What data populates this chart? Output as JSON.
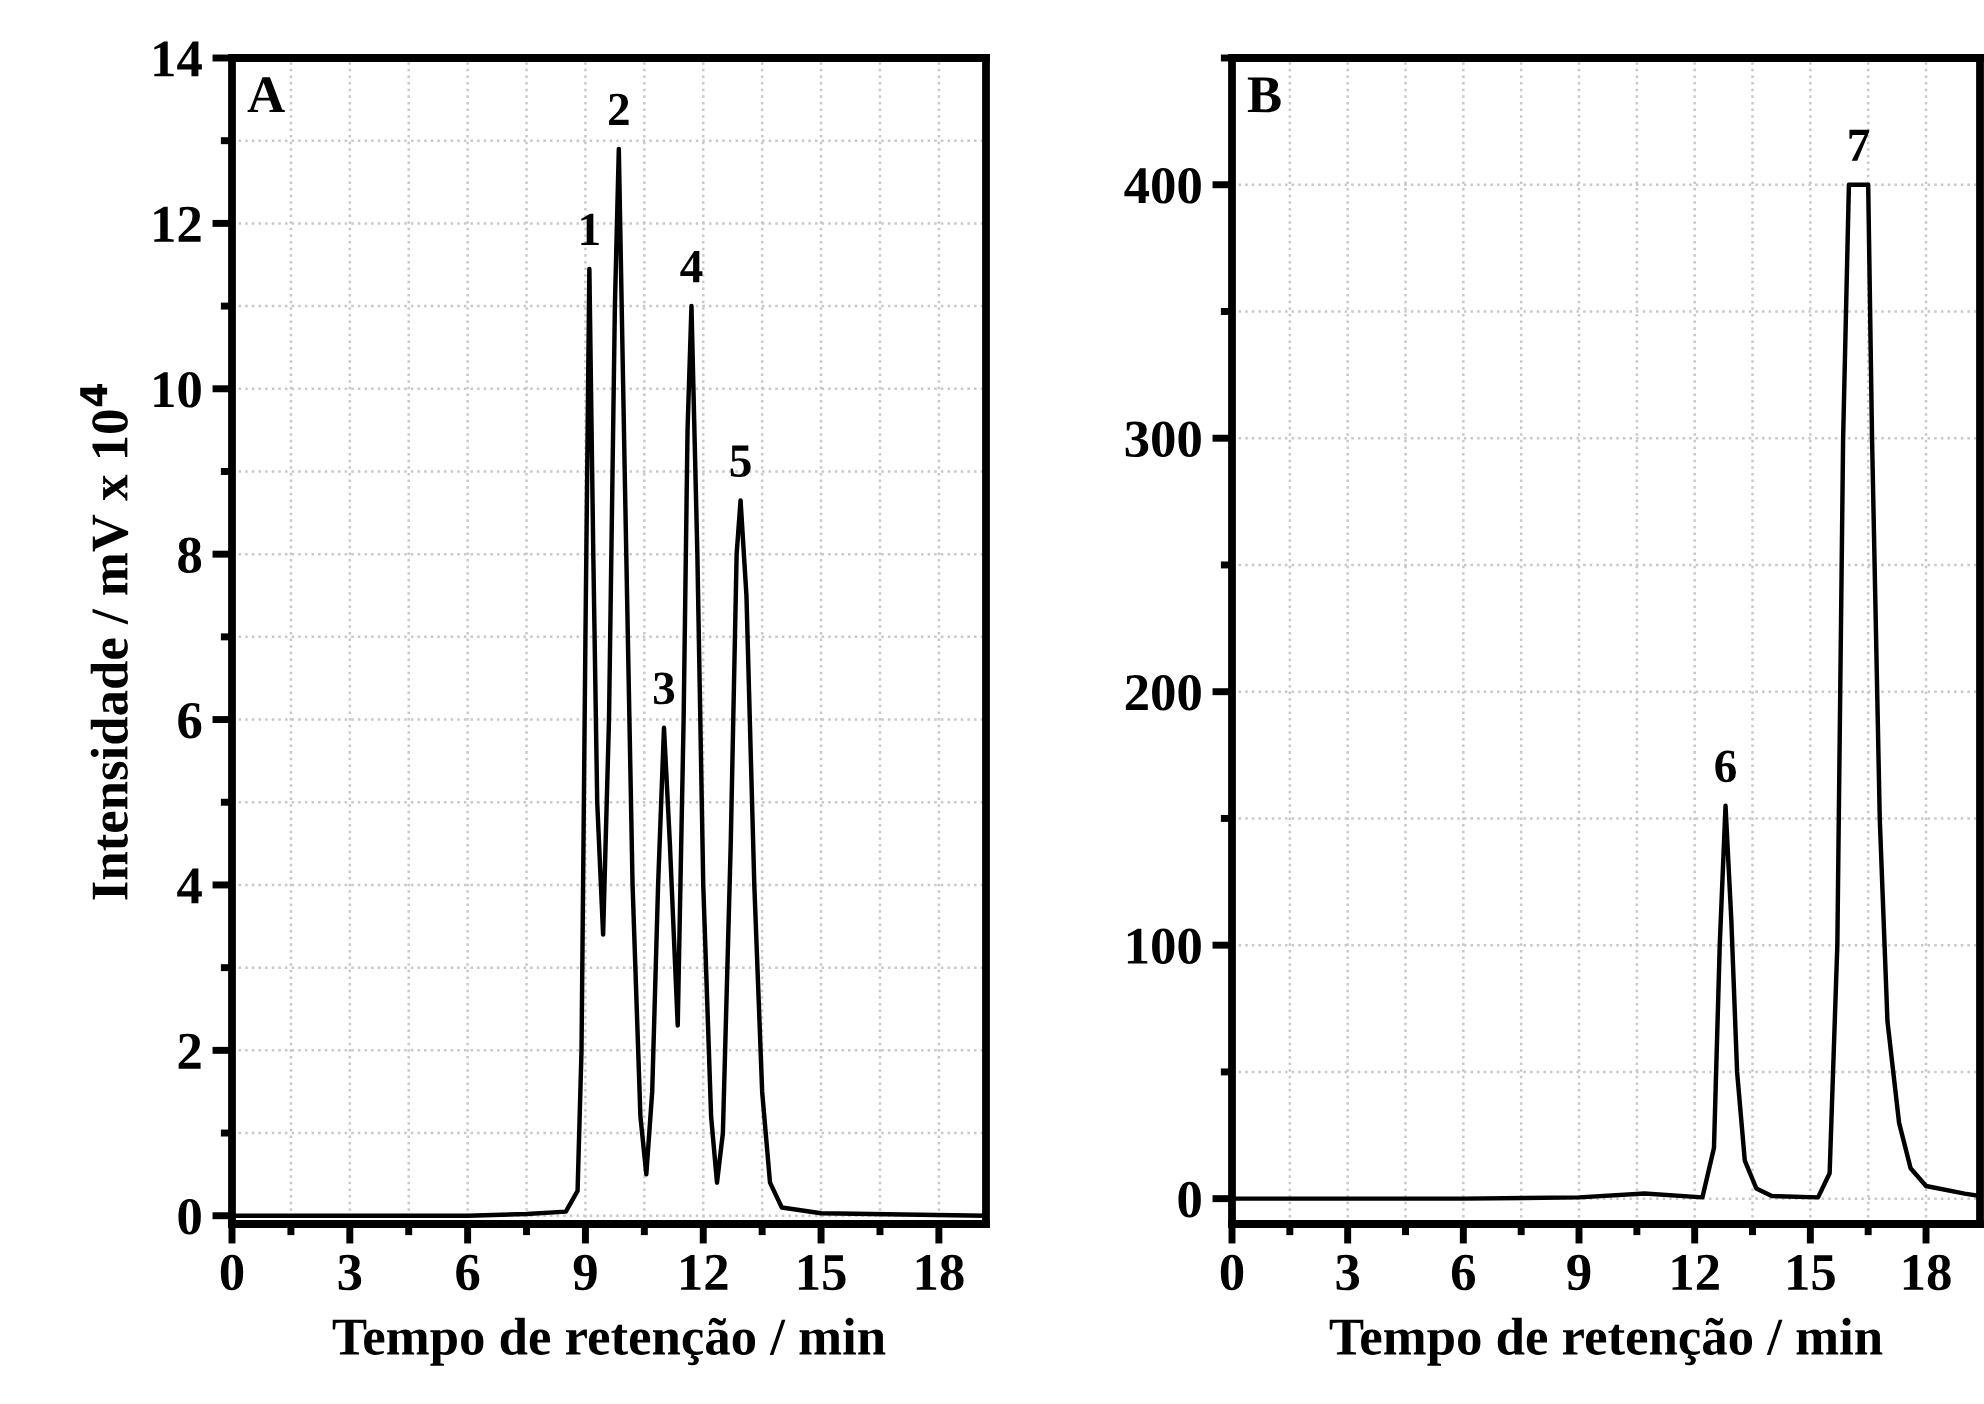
{
  "chart_data": [
    {
      "type": "line",
      "xlabel": "Tempo de retenção / min",
      "ylabel": "Intensidade / mV x 10$^{4}$",
      "series": [
        {
          "color": "#000000",
          "x": [
            0,
            6,
            7.5,
            8.5,
            8.8,
            8.9,
            9.0,
            9.1,
            9.2,
            9.3,
            9.45,
            9.6,
            9.75,
            9.85,
            10.0,
            10.2,
            10.4,
            10.55,
            10.7,
            10.85,
            11.0,
            11.15,
            11.35,
            11.5,
            11.6,
            11.7,
            11.85,
            12.0,
            12.2,
            12.35,
            12.5,
            12.7,
            12.85,
            12.95,
            13.1,
            13.3,
            13.5,
            13.7,
            14.0,
            15,
            19.2
          ],
          "values": [
            0,
            0,
            0.02,
            0.05,
            0.3,
            2,
            7,
            11.45,
            8,
            5,
            3.4,
            6,
            11,
            12.9,
            9,
            4,
            1.2,
            0.5,
            1.5,
            4,
            5.9,
            4.5,
            2.3,
            6,
            9.5,
            11.0,
            8,
            4,
            1.2,
            0.4,
            1,
            4.5,
            8,
            8.65,
            7.5,
            4,
            1.5,
            0.4,
            0.1,
            0.03,
            0
          ]
        }
      ],
      "xlim": [
        0,
        19.2
      ],
      "ylim": [
        -0.1,
        14
      ],
      "xticks": [
        0,
        3,
        6,
        9,
        12,
        15,
        18
      ],
      "yticks": [
        0,
        2,
        4,
        6,
        8,
        10,
        12,
        14
      ],
      "grid": true,
      "annotations": [
        "A",
        {
          "text": "1",
          "x": 9.1,
          "y": 11.45
        },
        {
          "text": "2",
          "x": 9.85,
          "y": 12.9
        },
        {
          "text": "3",
          "x": 11.0,
          "y": 5.9
        },
        {
          "text": "4",
          "x": 11.7,
          "y": 11.0
        },
        {
          "text": "5",
          "x": 12.95,
          "y": 8.65
        }
      ]
    },
    {
      "type": "line",
      "xlabel": "Tempo de retenção / min",
      "series": [
        {
          "color": "#000000",
          "x": [
            0,
            6,
            9,
            10.7,
            12.2,
            12.5,
            12.65,
            12.8,
            12.95,
            13.1,
            13.3,
            13.6,
            14,
            15.2,
            15.5,
            15.7,
            15.85,
            16.0,
            16.5,
            16.6,
            16.8,
            17.0,
            17.3,
            17.6,
            18,
            19,
            19.4
          ],
          "values": [
            0,
            0,
            0.5,
            2,
            0.5,
            20,
            100,
            155,
            110,
            50,
            15,
            4,
            1,
            0.5,
            10,
            100,
            300,
            400,
            400,
            300,
            150,
            70,
            30,
            12,
            5,
            2,
            1
          ]
        }
      ],
      "xlim": [
        0,
        19.4
      ],
      "ylim": [
        -10,
        450
      ],
      "xticks": [
        0,
        3,
        6,
        9,
        12,
        15,
        18
      ],
      "yticks": [
        0,
        100,
        200,
        300,
        400
      ],
      "grid": true,
      "annotations": [
        "B",
        {
          "text": "6",
          "x": 12.8,
          "y": 155
        },
        {
          "text": "7",
          "x": 16.25,
          "y": 400
        }
      ]
    }
  ]
}
